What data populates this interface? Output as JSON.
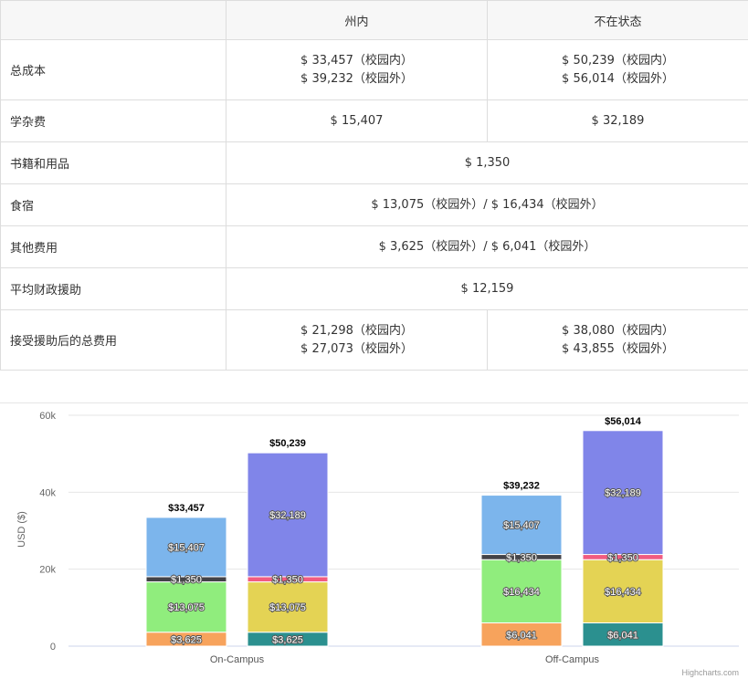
{
  "table": {
    "headers": [
      "",
      "州内",
      "不在状态"
    ],
    "rows": [
      {
        "label": "总成本",
        "in_state": [
          "$ 33,457（校园内）",
          "$ 39,232（校园外）"
        ],
        "out_state": [
          "$ 50,239（校园内）",
          "$ 56,014（校园外）"
        ]
      },
      {
        "label": "学杂费",
        "in_state": [
          "$ 15,407"
        ],
        "out_state": [
          "$ 32,189"
        ]
      },
      {
        "label": "书籍和用品",
        "merged": "$ 1,350"
      },
      {
        "label": "食宿",
        "merged": "$ 13,075（校园外）/ $ 16,434（校园外）"
      },
      {
        "label": "其他费用",
        "merged": "$ 3,625（校园外）/ $ 6,041（校园外）"
      },
      {
        "label": "平均财政援助",
        "merged": "$ 12,159"
      },
      {
        "label": "接受援助后的总费用",
        "in_state": [
          "$ 21,298（校园内）",
          "$ 27,073（校园外）"
        ],
        "out_state": [
          "$ 38,080（校园内）",
          "$ 43,855（校园外）"
        ]
      }
    ]
  },
  "chart_data": {
    "type": "bar",
    "stacked": true,
    "categories": [
      "On-Campus",
      "Off-Campus"
    ],
    "ylabel": "USD ($)",
    "ylim": [
      0,
      60000
    ],
    "y_ticks": [
      0,
      20000,
      40000,
      60000
    ],
    "y_tick_labels": [
      "0",
      "20k",
      "40k",
      "60k"
    ],
    "grid": true,
    "stacks": [
      {
        "category": "On-Campus",
        "total_label": "$33,457",
        "segments": [
          {
            "value": 3625,
            "label": "$3,625",
            "color": "#f7a35c"
          },
          {
            "value": 13075,
            "label": "$13,075",
            "color": "#90ed7d"
          },
          {
            "value": 1350,
            "label": "$1,350",
            "color": "#434348"
          },
          {
            "value": 15407,
            "label": "$15,407",
            "color": "#7cb5ec"
          }
        ]
      },
      {
        "category": "On-Campus",
        "total_label": "$50,239",
        "segments": [
          {
            "value": 3625,
            "label": "$3,625",
            "color": "#2b908f"
          },
          {
            "value": 13075,
            "label": "$13,075",
            "color": "#e4d354"
          },
          {
            "value": 1350,
            "label": "$1,350",
            "color": "#f15c80"
          },
          {
            "value": 32189,
            "label": "$32,189",
            "color": "#8085e9"
          }
        ]
      },
      {
        "category": "Off-Campus",
        "total_label": "$39,232",
        "segments": [
          {
            "value": 6041,
            "label": "$6,041",
            "color": "#f7a35c"
          },
          {
            "value": 16434,
            "label": "$16,434",
            "color": "#90ed7d"
          },
          {
            "value": 1350,
            "label": "$1,350",
            "color": "#434348"
          },
          {
            "value": 15407,
            "label": "$15,407",
            "color": "#7cb5ec"
          }
        ]
      },
      {
        "category": "Off-Campus",
        "total_label": "$56,014",
        "segments": [
          {
            "value": 6041,
            "label": "$6,041",
            "color": "#2b908f"
          },
          {
            "value": 16434,
            "label": "$16,434",
            "color": "#e4d354"
          },
          {
            "value": 1350,
            "label": "$1,350",
            "color": "#f15c80"
          },
          {
            "value": 32189,
            "label": "$32,189",
            "color": "#8085e9"
          }
        ]
      }
    ],
    "credits": "Highcharts.com"
  }
}
